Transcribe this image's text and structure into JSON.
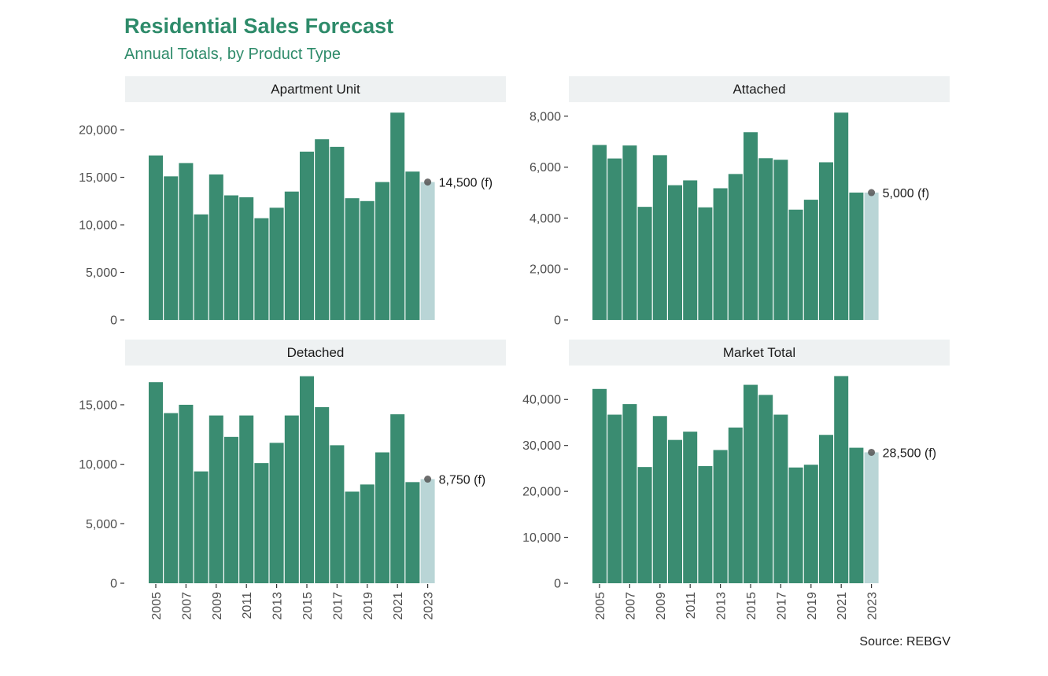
{
  "title": "Residential Sales Forecast",
  "subtitle": "Annual Totals, by Product Type",
  "caption": "Source: REBGV",
  "colors": {
    "actual": "#3a8c71",
    "forecast": "#b9d5d6",
    "strip": "#eef1f2",
    "title": "#2e8b6a",
    "point": "#555555"
  },
  "chart_data": [
    {
      "type": "bar",
      "facet": "Apartment Unit",
      "categories": [
        "2005",
        "2006",
        "2007",
        "2008",
        "2009",
        "2010",
        "2011",
        "2012",
        "2013",
        "2014",
        "2015",
        "2016",
        "2017",
        "2018",
        "2019",
        "2020",
        "2021",
        "2022",
        "2023"
      ],
      "values": [
        17300,
        15100,
        16500,
        11100,
        15300,
        13100,
        12900,
        10700,
        11800,
        13500,
        17700,
        19000,
        18200,
        12800,
        12500,
        14500,
        21800,
        15600,
        14500
      ],
      "forecast_index": 18,
      "annotation": "14,500 (f)",
      "y_ticks": [
        0,
        5000,
        10000,
        15000,
        20000
      ],
      "y_tick_labels": [
        "0",
        "5,000",
        "10,000",
        "15,000",
        "20,000"
      ],
      "ylim": [
        0,
        22900
      ]
    },
    {
      "type": "bar",
      "facet": "Attached",
      "categories": [
        "2005",
        "2006",
        "2007",
        "2008",
        "2009",
        "2010",
        "2011",
        "2012",
        "2013",
        "2014",
        "2015",
        "2016",
        "2017",
        "2018",
        "2019",
        "2020",
        "2021",
        "2022",
        "2023"
      ],
      "values": [
        6870,
        6340,
        6850,
        4440,
        6470,
        5290,
        5480,
        4420,
        5170,
        5730,
        7370,
        6350,
        6290,
        4330,
        4720,
        6190,
        8140,
        5000,
        5000
      ],
      "forecast_index": 18,
      "annotation": "5,000 (f)",
      "y_ticks": [
        0,
        2000,
        4000,
        6000,
        8000
      ],
      "y_tick_labels": [
        "0",
        "2,000",
        "4,000",
        "6,000",
        "8,000"
      ],
      "ylim": [
        0,
        8550
      ]
    },
    {
      "type": "bar",
      "facet": "Detached",
      "categories": [
        "2005",
        "2006",
        "2007",
        "2008",
        "2009",
        "2010",
        "2011",
        "2012",
        "2013",
        "2014",
        "2015",
        "2016",
        "2017",
        "2018",
        "2019",
        "2020",
        "2021",
        "2022",
        "2023"
      ],
      "values": [
        16900,
        14300,
        15000,
        9400,
        14100,
        12300,
        14100,
        10100,
        11800,
        14100,
        17400,
        14800,
        11600,
        7700,
        8300,
        11000,
        14200,
        8500,
        8750
      ],
      "forecast_index": 18,
      "annotation": "8,750 (f)",
      "y_ticks": [
        0,
        5000,
        10000,
        15000
      ],
      "y_tick_labels": [
        "0",
        "5,000",
        "10,000",
        "15,000"
      ],
      "ylim": [
        0,
        18300
      ]
    },
    {
      "type": "bar",
      "facet": "Market Total",
      "categories": [
        "2005",
        "2006",
        "2007",
        "2008",
        "2009",
        "2010",
        "2011",
        "2012",
        "2013",
        "2014",
        "2015",
        "2016",
        "2017",
        "2018",
        "2019",
        "2020",
        "2021",
        "2022",
        "2023"
      ],
      "values": [
        42300,
        36700,
        39000,
        25300,
        36400,
        31200,
        33000,
        25500,
        29000,
        33900,
        43200,
        41000,
        36700,
        25200,
        25800,
        32300,
        45100,
        29500,
        28500
      ],
      "forecast_index": 18,
      "annotation": "28,500 (f)",
      "y_ticks": [
        0,
        10000,
        20000,
        30000,
        40000
      ],
      "y_tick_labels": [
        "0",
        "10,000",
        "20,000",
        "30,000",
        "40,000"
      ],
      "ylim": [
        0,
        47400
      ]
    }
  ],
  "x_tick_labels": [
    "2005",
    "2007",
    "2009",
    "2011",
    "2013",
    "2015",
    "2017",
    "2019",
    "2021",
    "2023"
  ]
}
